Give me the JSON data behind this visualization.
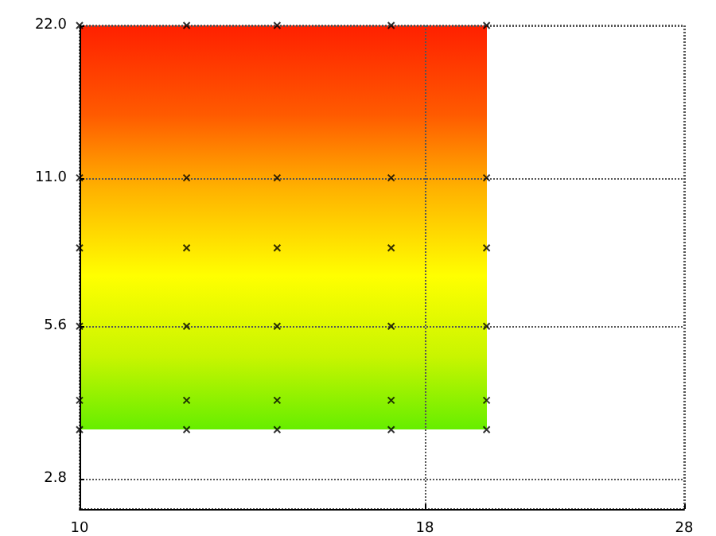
{
  "chart_data": {
    "type": "scatter",
    "log": "xy",
    "marker": "cross",
    "grid": true,
    "series": [
      {
        "color": "#000000",
        "x": [
          10,
          12,
          14,
          17,
          20,
          10,
          12,
          14,
          17,
          20,
          10,
          12,
          14,
          17,
          20,
          10,
          12,
          14,
          17,
          20,
          10,
          12,
          14,
          17,
          20,
          10,
          12,
          14,
          17,
          20
        ],
        "values": [
          22,
          22,
          22,
          22,
          22,
          11,
          11,
          11,
          11,
          11,
          8,
          8,
          8,
          8,
          8,
          5.6,
          5.6,
          5.6,
          5.6,
          5.6,
          4,
          4,
          4,
          4,
          4,
          3.5,
          3.5,
          3.5,
          3.5,
          3.5
        ]
      }
    ],
    "xlim": [
      10,
      28
    ],
    "xticks": [
      10,
      18,
      28
    ],
    "ylim": [
      2.44,
      22
    ],
    "yticks": [
      {
        "value": 2.8,
        "label": "2.8"
      },
      {
        "value": 5.6,
        "label": "5.6"
      },
      {
        "value": 11,
        "label": "11.0"
      },
      {
        "value": 22,
        "label": "22.0"
      }
    ]
  }
}
